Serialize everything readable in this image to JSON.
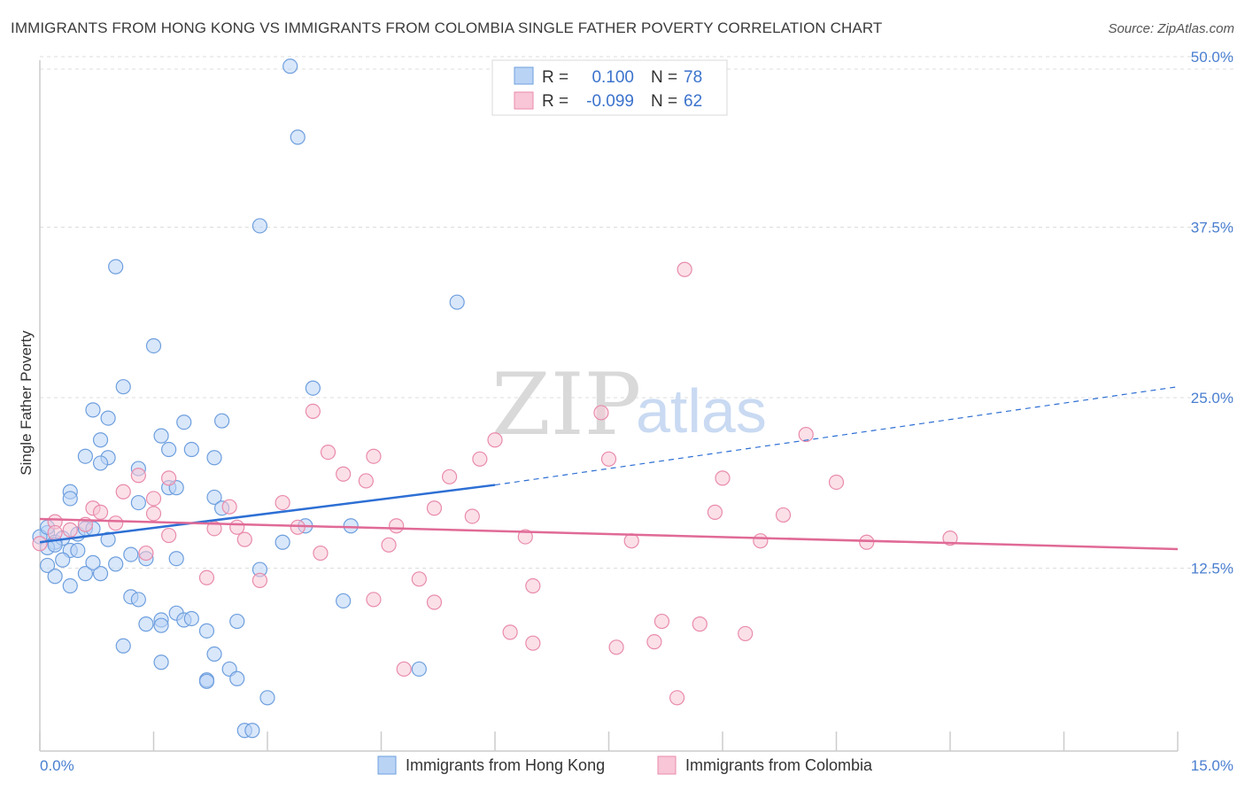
{
  "title": "IMMIGRANTS FROM HONG KONG VS IMMIGRANTS FROM COLOMBIA SINGLE FATHER POVERTY CORRELATION CHART",
  "source": "Source: ZipAtlas.com",
  "watermark": {
    "zip": "ZIP",
    "atlas": "atlas"
  },
  "colors": {
    "hong_kong_fill": "#b9d3f5",
    "hong_kong_stroke": "#6e9fde",
    "hong_kong_line": "#2d6fd4",
    "colombia_fill": "#f8c6d6",
    "colombia_stroke": "#e98bab",
    "colombia_line": "#e06a96",
    "tick_label": "#4a7fd0",
    "grid": "#dddddd"
  },
  "legend": {
    "r_label": "R =",
    "n_label": "N =",
    "rows": [
      {
        "r": "0.100",
        "n": "78"
      },
      {
        "r": "-0.099",
        "n": "62"
      }
    ]
  },
  "chart_data": {
    "type": "scatter",
    "title": "IMMIGRANTS FROM HONG KONG VS IMMIGRANTS FROM COLOMBIA SINGLE FATHER POVERTY CORRELATION CHART",
    "xlabel": "",
    "ylabel": "Single Father Poverty",
    "xlim": [
      0,
      15
    ],
    "ylim": [
      0,
      50
    ],
    "x_tick_labels": [
      "0.0%",
      "15.0%"
    ],
    "y_ticks": [
      12.5,
      25.0,
      37.5,
      50.0
    ],
    "y_tick_labels": [
      "12.5%",
      "25.0%",
      "37.5%",
      "50.0%"
    ],
    "grid": true,
    "legend_placement": "top-center",
    "series": [
      {
        "name": "Immigrants from Hong Kong",
        "r": 0.1,
        "n": 78,
        "trend": {
          "x": [
            0,
            6.0
          ],
          "y": [
            14.4,
            18.6
          ],
          "dashed_to": [
            15.0,
            25.8
          ]
        },
        "points": [
          [
            3.3,
            49.3
          ],
          [
            3.4,
            44.1
          ],
          [
            2.9,
            37.6
          ],
          [
            1.0,
            34.6
          ],
          [
            5.5,
            32.0
          ],
          [
            1.5,
            28.8
          ],
          [
            1.1,
            25.8
          ],
          [
            3.6,
            25.7
          ],
          [
            0.7,
            24.1
          ],
          [
            0.9,
            23.5
          ],
          [
            2.4,
            23.3
          ],
          [
            1.6,
            22.2
          ],
          [
            1.9,
            23.2
          ],
          [
            0.8,
            21.9
          ],
          [
            0.6,
            20.7
          ],
          [
            0.9,
            20.6
          ],
          [
            1.7,
            21.2
          ],
          [
            2.0,
            21.2
          ],
          [
            2.3,
            20.6
          ],
          [
            0.8,
            20.2
          ],
          [
            1.3,
            19.8
          ],
          [
            0.4,
            18.1
          ],
          [
            0.4,
            17.6
          ],
          [
            1.7,
            18.4
          ],
          [
            1.8,
            18.4
          ],
          [
            2.3,
            17.7
          ],
          [
            1.3,
            17.3
          ],
          [
            2.4,
            16.9
          ],
          [
            0.1,
            15.1
          ],
          [
            0.2,
            14.4
          ],
          [
            0.3,
            14.7
          ],
          [
            0.5,
            15.0
          ],
          [
            0.6,
            15.4
          ],
          [
            0.7,
            15.4
          ],
          [
            0.9,
            14.6
          ],
          [
            0.0,
            14.8
          ],
          [
            0.1,
            14.0
          ],
          [
            0.2,
            14.2
          ],
          [
            0.4,
            13.8
          ],
          [
            0.5,
            13.8
          ],
          [
            1.2,
            13.5
          ],
          [
            0.3,
            13.1
          ],
          [
            0.1,
            12.7
          ],
          [
            1.4,
            13.2
          ],
          [
            1.8,
            13.2
          ],
          [
            0.2,
            11.9
          ],
          [
            0.6,
            12.1
          ],
          [
            0.8,
            12.1
          ],
          [
            0.7,
            12.9
          ],
          [
            1.0,
            12.8
          ],
          [
            0.4,
            11.2
          ],
          [
            3.5,
            15.6
          ],
          [
            3.2,
            14.4
          ],
          [
            2.9,
            12.4
          ],
          [
            4.1,
            15.6
          ],
          [
            1.2,
            10.4
          ],
          [
            1.3,
            10.2
          ],
          [
            4.0,
            10.1
          ],
          [
            1.8,
            9.2
          ],
          [
            1.6,
            8.7
          ],
          [
            1.9,
            8.7
          ],
          [
            2.0,
            8.8
          ],
          [
            1.4,
            8.4
          ],
          [
            1.6,
            8.3
          ],
          [
            2.6,
            8.6
          ],
          [
            2.2,
            7.9
          ],
          [
            1.1,
            6.8
          ],
          [
            2.3,
            6.2
          ],
          [
            1.6,
            5.6
          ],
          [
            2.5,
            5.1
          ],
          [
            2.6,
            4.4
          ],
          [
            2.2,
            4.3
          ],
          [
            2.2,
            4.2
          ],
          [
            5.0,
            5.1
          ],
          [
            3.0,
            3.0
          ],
          [
            2.7,
            0.6
          ],
          [
            2.8,
            0.6
          ],
          [
            0.1,
            15.5
          ]
        ]
      },
      {
        "name": "Immigrants from Colombia",
        "r": -0.099,
        "n": 62,
        "trend": {
          "x": [
            0,
            15.0
          ],
          "y": [
            16.1,
            13.9
          ]
        },
        "points": [
          [
            8.5,
            34.4
          ],
          [
            3.6,
            24.0
          ],
          [
            7.4,
            23.9
          ],
          [
            10.1,
            22.3
          ],
          [
            6.0,
            21.9
          ],
          [
            3.8,
            21.0
          ],
          [
            4.4,
            20.7
          ],
          [
            5.8,
            20.5
          ],
          [
            7.5,
            20.5
          ],
          [
            4.0,
            19.4
          ],
          [
            1.3,
            19.3
          ],
          [
            1.7,
            19.1
          ],
          [
            4.3,
            18.9
          ],
          [
            5.4,
            19.2
          ],
          [
            9.0,
            19.1
          ],
          [
            10.5,
            18.8
          ],
          [
            1.1,
            18.1
          ],
          [
            1.5,
            17.6
          ],
          [
            3.2,
            17.3
          ],
          [
            2.5,
            17.0
          ],
          [
            0.7,
            16.9
          ],
          [
            0.8,
            16.6
          ],
          [
            1.5,
            16.5
          ],
          [
            5.2,
            16.9
          ],
          [
            5.7,
            16.3
          ],
          [
            8.9,
            16.6
          ],
          [
            9.8,
            16.4
          ],
          [
            0.2,
            15.9
          ],
          [
            0.6,
            15.7
          ],
          [
            1.0,
            15.8
          ],
          [
            2.3,
            15.4
          ],
          [
            2.6,
            15.5
          ],
          [
            3.4,
            15.5
          ],
          [
            4.7,
            15.6
          ],
          [
            0.4,
            15.3
          ],
          [
            0.2,
            15.1
          ],
          [
            1.7,
            14.9
          ],
          [
            2.7,
            14.6
          ],
          [
            6.4,
            14.8
          ],
          [
            7.8,
            14.5
          ],
          [
            9.5,
            14.5
          ],
          [
            10.9,
            14.4
          ],
          [
            12.0,
            14.7
          ],
          [
            4.6,
            14.2
          ],
          [
            1.4,
            13.6
          ],
          [
            3.7,
            13.6
          ],
          [
            0.0,
            14.3
          ],
          [
            2.2,
            11.8
          ],
          [
            2.9,
            11.6
          ],
          [
            5.0,
            11.7
          ],
          [
            6.5,
            11.2
          ],
          [
            4.4,
            10.2
          ],
          [
            5.2,
            10.0
          ],
          [
            8.2,
            8.6
          ],
          [
            8.7,
            8.4
          ],
          [
            6.2,
            7.8
          ],
          [
            9.3,
            7.7
          ],
          [
            6.5,
            7.0
          ],
          [
            8.1,
            7.1
          ],
          [
            7.6,
            6.7
          ],
          [
            4.8,
            5.1
          ],
          [
            8.4,
            3.0
          ]
        ]
      }
    ]
  },
  "bottom_legend": [
    "Immigrants from Hong Kong",
    "Immigrants from Colombia"
  ]
}
